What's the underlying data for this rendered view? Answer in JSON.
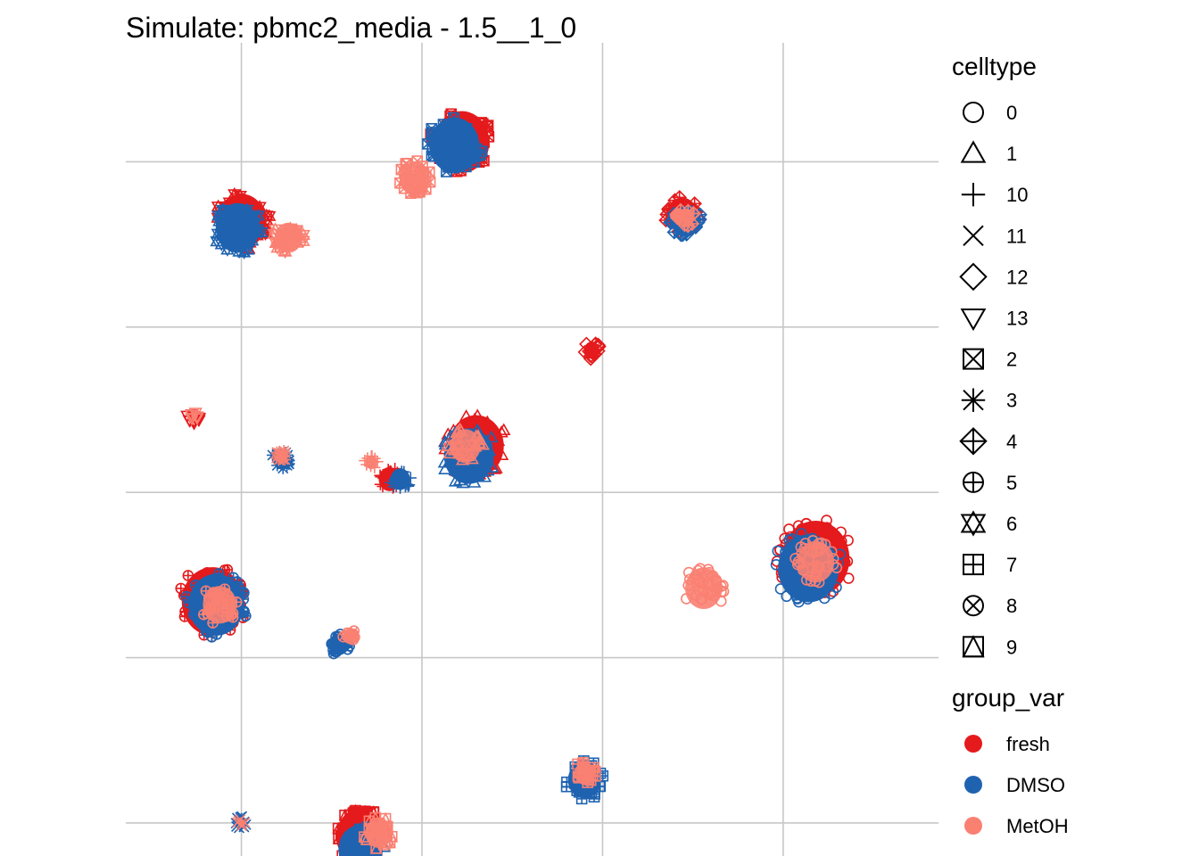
{
  "chart_data": {
    "type": "scatter",
    "title": "Simulate: pbmc2_media - 1.5__1_0",
    "xlabel": "",
    "ylabel": "",
    "grid": true,
    "axis_ticks_shown": false,
    "xlim": [
      -5.7,
      16.8
    ],
    "ylim": [
      -11,
      13.6
    ],
    "x_grid": [
      -2.5,
      2.5,
      7.5,
      12.5
    ],
    "y_grid": [
      -10,
      -5,
      0,
      5,
      10
    ],
    "legend_position": "right",
    "legends": [
      {
        "title": "celltype",
        "entries": [
          {
            "label": "0",
            "shape": "circle"
          },
          {
            "label": "1",
            "shape": "triangle"
          },
          {
            "label": "10",
            "shape": "plus"
          },
          {
            "label": "11",
            "shape": "cross"
          },
          {
            "label": "12",
            "shape": "diamond"
          },
          {
            "label": "13",
            "shape": "triangle-down"
          },
          {
            "label": "2",
            "shape": "square-cross"
          },
          {
            "label": "3",
            "shape": "asterisk"
          },
          {
            "label": "4",
            "shape": "diamond-plus"
          },
          {
            "label": "5",
            "shape": "circle-plus"
          },
          {
            "label": "6",
            "shape": "star-of-david"
          },
          {
            "label": "7",
            "shape": "square-plus"
          },
          {
            "label": "8",
            "shape": "circle-cross"
          },
          {
            "label": "9",
            "shape": "square-triangle"
          }
        ]
      },
      {
        "title": "group_var",
        "entries": [
          {
            "label": "fresh",
            "color": "#E41A1C"
          },
          {
            "label": "DMSO",
            "color": "#1F63B0"
          },
          {
            "label": "MetOH",
            "color": "#FA8072"
          }
        ]
      }
    ],
    "clusters": [
      {
        "celltype": "0",
        "x": 13.2,
        "y": -2.2,
        "radius": 1.1,
        "groups": [
          {
            "group": "fresh",
            "x": 13.4,
            "y": -2.0
          },
          {
            "group": "DMSO",
            "x": 13.2,
            "y": -2.3
          },
          {
            "group": "MetOH",
            "x": 13.4,
            "y": -2.1
          },
          {
            "group": "MetOH",
            "x": 10.3,
            "y": -2.9
          }
        ]
      },
      {
        "celltype": "1",
        "x": 3.8,
        "y": 1.0,
        "radius": 0.9,
        "groups": [
          {
            "group": "fresh",
            "x": 4.0,
            "y": 1.4
          },
          {
            "group": "DMSO",
            "x": 3.8,
            "y": 1.1
          },
          {
            "group": "MetOH",
            "x": 3.7,
            "y": 1.4
          }
        ]
      },
      {
        "celltype": "2",
        "x": 3.5,
        "y": 10.4,
        "radius": 0.9,
        "groups": [
          {
            "group": "fresh",
            "x": 3.6,
            "y": 10.6
          },
          {
            "group": "DMSO",
            "x": 3.4,
            "y": 10.5
          },
          {
            "group": "MetOH",
            "x": 2.3,
            "y": 9.5
          }
        ]
      },
      {
        "celltype": "6",
        "x": -2.6,
        "y": 7.9,
        "radius": 0.8,
        "groups": [
          {
            "group": "fresh",
            "x": -2.5,
            "y": 8.2
          },
          {
            "group": "DMSO",
            "x": -2.6,
            "y": 8.0
          },
          {
            "group": "MetOH",
            "x": -1.2,
            "y": 7.7
          }
        ]
      },
      {
        "celltype": "5",
        "x": -3.2,
        "y": -3.4,
        "radius": 1.0,
        "groups": [
          {
            "group": "fresh",
            "x": -3.3,
            "y": -3.3
          },
          {
            "group": "DMSO",
            "x": -3.2,
            "y": -3.4
          },
          {
            "group": "MetOH",
            "x": -3.1,
            "y": -3.4
          }
        ]
      },
      {
        "celltype": "9",
        "x": 0.9,
        "y": -10.7,
        "radius": 0.8,
        "groups": [
          {
            "group": "fresh",
            "x": 0.8,
            "y": -10.4
          },
          {
            "group": "DMSO",
            "x": 0.8,
            "y": -10.8
          },
          {
            "group": "MetOH",
            "x": 1.3,
            "y": -10.3
          }
        ]
      },
      {
        "celltype": "7",
        "x": 7.0,
        "y": -8.6,
        "radius": 0.6,
        "groups": [
          {
            "group": "DMSO",
            "x": 7.0,
            "y": -8.7
          },
          {
            "group": "MetOH",
            "x": 7.0,
            "y": -8.5
          }
        ]
      },
      {
        "celltype": "4",
        "x": 9.8,
        "y": 8.3,
        "radius": 0.5,
        "groups": [
          {
            "group": "fresh",
            "x": 9.7,
            "y": 8.4
          },
          {
            "group": "DMSO",
            "x": 9.8,
            "y": 8.2
          },
          {
            "group": "MetOH",
            "x": 9.8,
            "y": 8.3
          }
        ]
      },
      {
        "celltype": "12",
        "x": 7.2,
        "y": 4.3,
        "radius": 0.25,
        "groups": [
          {
            "group": "fresh",
            "x": 7.2,
            "y": 4.3
          }
        ]
      },
      {
        "celltype": "8",
        "x": 0.3,
        "y": -4.5,
        "radius": 0.35,
        "groups": [
          {
            "group": "DMSO",
            "x": 0.2,
            "y": -4.6
          },
          {
            "group": "MetOH",
            "x": 0.5,
            "y": -4.3
          }
        ]
      },
      {
        "celltype": "3",
        "x": -1.4,
        "y": 1.1,
        "radius": 0.3,
        "groups": [
          {
            "group": "DMSO",
            "x": -1.4,
            "y": 1.0
          },
          {
            "group": "MetOH",
            "x": -1.4,
            "y": 1.1
          }
        ]
      },
      {
        "celltype": "10",
        "x": 1.7,
        "y": 0.4,
        "radius": 0.35,
        "groups": [
          {
            "group": "fresh",
            "x": 1.6,
            "y": 0.4
          },
          {
            "group": "DMSO",
            "x": 1.9,
            "y": 0.4
          },
          {
            "group": "MetOH",
            "x": 1.1,
            "y": 0.9
          }
        ]
      },
      {
        "celltype": "13",
        "x": -3.8,
        "y": 2.3,
        "radius": 0.2,
        "groups": [
          {
            "group": "fresh",
            "x": -3.8,
            "y": 2.3
          },
          {
            "group": "MetOH",
            "x": -3.8,
            "y": 2.3
          }
        ]
      },
      {
        "celltype": "11",
        "x": -2.5,
        "y": -10.0,
        "radius": 0.2,
        "groups": [
          {
            "group": "DMSO",
            "x": -2.5,
            "y": -10.0
          },
          {
            "group": "MetOH",
            "x": -2.5,
            "y": -10.0
          }
        ]
      }
    ]
  }
}
